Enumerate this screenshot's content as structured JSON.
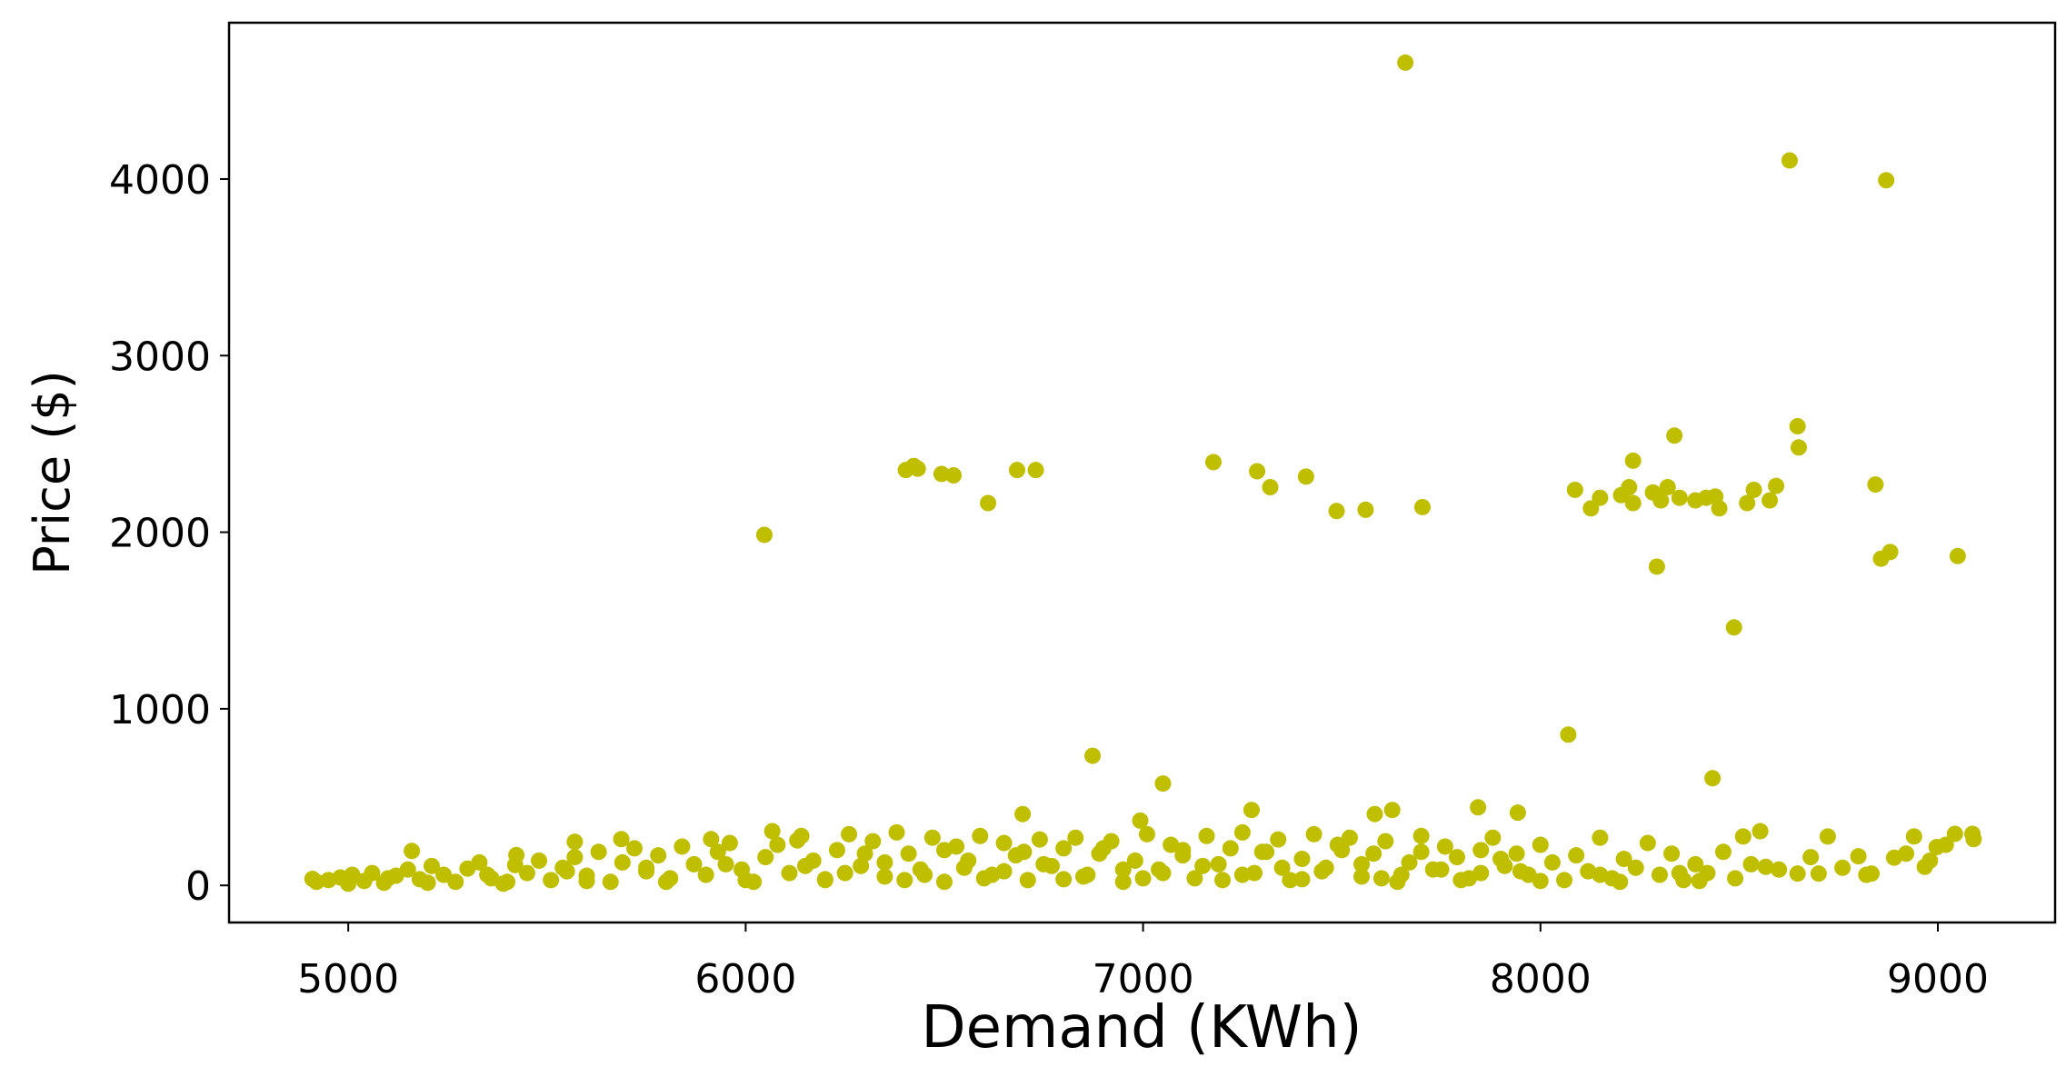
{
  "chart_data": {
    "type": "scatter",
    "title": "",
    "xlabel": "Demand (KWh)",
    "ylabel": "Price ($)",
    "xlim": [
      4700,
      9295
    ],
    "ylim": [
      -210,
      4885
    ],
    "xticks": [
      "5000",
      "6000",
      "7000",
      "8000",
      "9000"
    ],
    "yticks": [
      "0",
      "1000",
      "2000",
      "3000",
      "4000"
    ],
    "grid": false,
    "legend": "none",
    "marker_color": "#bfbf00",
    "points": [
      [
        7660,
        4659
      ],
      [
        8627,
        4105
      ],
      [
        8870,
        3993
      ],
      [
        6047,
        1985
      ],
      [
        6403,
        2352
      ],
      [
        6423,
        2375
      ],
      [
        6433,
        2360
      ],
      [
        6493,
        2330
      ],
      [
        6523,
        2322
      ],
      [
        6610,
        2165
      ],
      [
        6683,
        2352
      ],
      [
        6730,
        2352
      ],
      [
        7177,
        2397
      ],
      [
        7287,
        2345
      ],
      [
        7320,
        2255
      ],
      [
        7410,
        2315
      ],
      [
        7487,
        2120
      ],
      [
        7560,
        2127
      ],
      [
        7703,
        2142
      ],
      [
        8087,
        2240
      ],
      [
        8127,
        2135
      ],
      [
        8150,
        2195
      ],
      [
        8203,
        2210
      ],
      [
        8223,
        2255
      ],
      [
        8233,
        2405
      ],
      [
        8233,
        2165
      ],
      [
        8283,
        2225
      ],
      [
        8303,
        2180
      ],
      [
        8320,
        2255
      ],
      [
        8337,
        2547
      ],
      [
        8350,
        2195
      ],
      [
        8390,
        2180
      ],
      [
        8417,
        2195
      ],
      [
        8440,
        2202
      ],
      [
        8450,
        2135
      ],
      [
        8520,
        2165
      ],
      [
        8537,
        2240
      ],
      [
        8577,
        2180
      ],
      [
        8593,
        2262
      ],
      [
        8647,
        2600
      ],
      [
        8650,
        2480
      ],
      [
        8843,
        2270
      ],
      [
        8857,
        1850
      ],
      [
        8880,
        1888
      ],
      [
        8293,
        1805
      ],
      [
        8487,
        1461
      ],
      [
        9050,
        1865
      ],
      [
        8070,
        854
      ],
      [
        6873,
        734
      ],
      [
        7050,
        577
      ],
      [
        8433,
        607
      ],
      [
        6697,
        404
      ],
      [
        7273,
        427
      ],
      [
        7583,
        404
      ],
      [
        7627,
        427
      ],
      [
        7843,
        442
      ],
      [
        7943,
        412
      ],
      [
        6993,
        367
      ],
      [
        8510,
        277
      ],
      [
        8553,
        307
      ],
      [
        8567,
        105
      ],
      [
        8647,
        67
      ],
      [
        8700,
        67
      ],
      [
        8723,
        277
      ],
      [
        8800,
        165
      ],
      [
        8833,
        67
      ],
      [
        8890,
        157
      ],
      [
        8940,
        277
      ],
      [
        8967,
        105
      ],
      [
        8997,
        217
      ],
      [
        9043,
        292
      ],
      [
        9087,
        292
      ],
      [
        9090,
        262
      ],
      [
        4910,
        37
      ],
      [
        5160,
        195
      ],
      [
        5423,
        172
      ],
      [
        5570,
        247
      ],
      [
        5687,
        262
      ],
      [
        5913,
        262
      ],
      [
        6067,
        307
      ],
      [
        6130,
        255
      ],
      [
        4920,
        20
      ],
      [
        4950,
        30
      ],
      [
        4980,
        45
      ],
      [
        5010,
        60
      ],
      [
        5040,
        25
      ],
      [
        5060,
        70
      ],
      [
        5090,
        15
      ],
      [
        5120,
        55
      ],
      [
        5150,
        90
      ],
      [
        5180,
        35
      ],
      [
        5210,
        110
      ],
      [
        5240,
        60
      ],
      [
        5270,
        20
      ],
      [
        5300,
        95
      ],
      [
        5330,
        130
      ],
      [
        5360,
        40
      ],
      [
        5390,
        10
      ],
      [
        5420,
        115
      ],
      [
        5450,
        70
      ],
      [
        5480,
        140
      ],
      [
        5510,
        30
      ],
      [
        5540,
        100
      ],
      [
        5570,
        160
      ],
      [
        5600,
        55
      ],
      [
        5630,
        190
      ],
      [
        5660,
        20
      ],
      [
        5690,
        130
      ],
      [
        5720,
        210
      ],
      [
        5750,
        80
      ],
      [
        5780,
        170
      ],
      [
        5810,
        40
      ],
      [
        5840,
        220
      ],
      [
        5870,
        120
      ],
      [
        5900,
        60
      ],
      [
        5930,
        190
      ],
      [
        5960,
        240
      ],
      [
        5990,
        90
      ],
      [
        6020,
        20
      ],
      [
        6050,
        160
      ],
      [
        6080,
        230
      ],
      [
        6110,
        70
      ],
      [
        6140,
        280
      ],
      [
        6170,
        140
      ],
      [
        6200,
        30
      ],
      [
        6230,
        200
      ],
      [
        6260,
        290
      ],
      [
        6290,
        110
      ],
      [
        6320,
        250
      ],
      [
        6350,
        50
      ],
      [
        6380,
        300
      ],
      [
        6410,
        180
      ],
      [
        6440,
        90
      ],
      [
        6470,
        270
      ],
      [
        6500,
        20
      ],
      [
        6530,
        220
      ],
      [
        6560,
        140
      ],
      [
        6590,
        280
      ],
      [
        6620,
        60
      ],
      [
        6650,
        240
      ],
      [
        6680,
        170
      ],
      [
        6710,
        30
      ],
      [
        6740,
        260
      ],
      [
        6770,
        110
      ],
      [
        6800,
        210
      ],
      [
        6830,
        270
      ],
      [
        6860,
        60
      ],
      [
        6890,
        180
      ],
      [
        6920,
        250
      ],
      [
        6950,
        20
      ],
      [
        6980,
        140
      ],
      [
        7010,
        290
      ],
      [
        7040,
        90
      ],
      [
        7070,
        230
      ],
      [
        7100,
        170
      ],
      [
        7130,
        40
      ],
      [
        7160,
        280
      ],
      [
        7190,
        120
      ],
      [
        7220,
        210
      ],
      [
        7250,
        300
      ],
      [
        7280,
        70
      ],
      [
        7310,
        190
      ],
      [
        7340,
        260
      ],
      [
        7370,
        30
      ],
      [
        7400,
        150
      ],
      [
        7430,
        290
      ],
      [
        7460,
        100
      ],
      [
        7490,
        230
      ],
      [
        7520,
        270
      ],
      [
        7550,
        50
      ],
      [
        7580,
        180
      ],
      [
        7610,
        250
      ],
      [
        7640,
        20
      ],
      [
        7670,
        130
      ],
      [
        7700,
        280
      ],
      [
        7730,
        90
      ],
      [
        7760,
        220
      ],
      [
        7790,
        160
      ],
      [
        7820,
        40
      ],
      [
        7850,
        200
      ],
      [
        7880,
        270
      ],
      [
        7910,
        110
      ],
      [
        7940,
        180
      ],
      [
        7970,
        60
      ],
      [
        8000,
        230
      ],
      [
        8030,
        130
      ],
      [
        8060,
        30
      ],
      [
        8090,
        170
      ],
      [
        8120,
        80
      ],
      [
        8150,
        270
      ],
      [
        8180,
        40
      ],
      [
        8210,
        150
      ],
      [
        8240,
        100
      ],
      [
        8270,
        240
      ],
      [
        8300,
        60
      ],
      [
        8330,
        180
      ],
      [
        8360,
        30
      ],
      [
        8390,
        120
      ],
      [
        8420,
        70
      ],
      [
        8460,
        190
      ],
      [
        8490,
        40
      ],
      [
        8530,
        120
      ],
      [
        8600,
        90
      ],
      [
        8680,
        160
      ],
      [
        8760,
        100
      ],
      [
        8820,
        60
      ],
      [
        8920,
        180
      ],
      [
        8980,
        140
      ],
      [
        9020,
        230
      ],
      [
        5000,
        10
      ],
      [
        5200,
        15
      ],
      [
        5400,
        20
      ],
      [
        5600,
        25
      ],
      [
        5800,
        20
      ],
      [
        6000,
        30
      ],
      [
        6200,
        35
      ],
      [
        6400,
        30
      ],
      [
        6600,
        40
      ],
      [
        6800,
        35
      ],
      [
        7000,
        40
      ],
      [
        7200,
        30
      ],
      [
        7400,
        35
      ],
      [
        7600,
        40
      ],
      [
        7800,
        30
      ],
      [
        8000,
        25
      ],
      [
        8200,
        20
      ],
      [
        8400,
        25
      ],
      [
        5100,
        40
      ],
      [
        5350,
        60
      ],
      [
        5550,
        80
      ],
      [
        5750,
        100
      ],
      [
        5950,
        120
      ],
      [
        6150,
        110
      ],
      [
        6350,
        130
      ],
      [
        6550,
        100
      ],
      [
        6750,
        120
      ],
      [
        6950,
        90
      ],
      [
        7150,
        110
      ],
      [
        7350,
        100
      ],
      [
        7550,
        120
      ],
      [
        7750,
        90
      ],
      [
        7950,
        80
      ],
      [
        8150,
        60
      ],
      [
        8350,
        70
      ],
      [
        6250,
        70
      ],
      [
        6450,
        60
      ],
      [
        6650,
        80
      ],
      [
        6850,
        50
      ],
      [
        7050,
        70
      ],
      [
        7250,
        60
      ],
      [
        7450,
        80
      ],
      [
        7650,
        60
      ],
      [
        7850,
        70
      ],
      [
        6300,
        180
      ],
      [
        6500,
        200
      ],
      [
        6700,
        190
      ],
      [
        6900,
        210
      ],
      [
        7100,
        200
      ],
      [
        7300,
        190
      ],
      [
        7500,
        200
      ],
      [
        7700,
        190
      ],
      [
        7900,
        150
      ]
    ]
  }
}
